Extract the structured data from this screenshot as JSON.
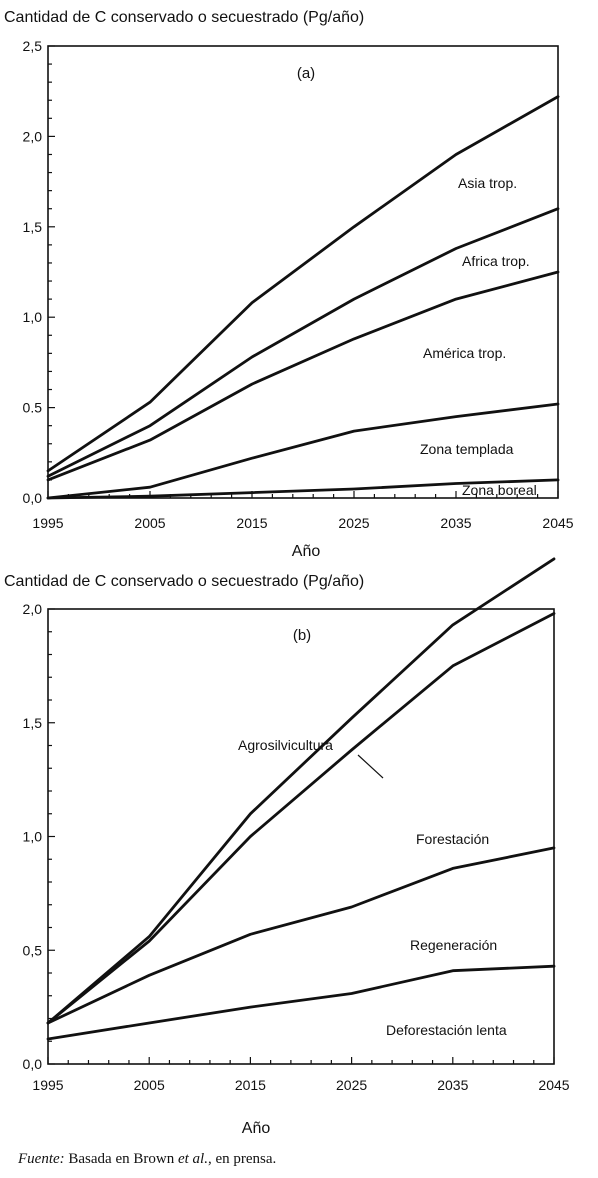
{
  "chart_data": [
    {
      "type": "line",
      "title": "Cantidad de C conservado o secuestrado (Pg/año)",
      "panel_label": "(a)",
      "xlabel": "Año",
      "ylabel": "",
      "xlim": [
        1995,
        2045
      ],
      "ylim": [
        0,
        2.5
      ],
      "x_ticks": [
        "1995",
        "2005",
        "2015",
        "2025",
        "2035",
        "2045"
      ],
      "y_ticks": [
        "0,0",
        "0.5",
        "1,0",
        "1,5",
        "2,0",
        "2,5"
      ],
      "x": [
        1995,
        2005,
        2015,
        2025,
        2035,
        2045
      ],
      "series": [
        {
          "name": "Asia trop.",
          "values": [
            0.15,
            0.53,
            1.08,
            1.5,
            1.9,
            2.22
          ]
        },
        {
          "name": "Africa trop.",
          "values": [
            0.12,
            0.4,
            0.78,
            1.1,
            1.38,
            1.6
          ]
        },
        {
          "name": "América trop.",
          "values": [
            0.1,
            0.32,
            0.63,
            0.88,
            1.1,
            1.25
          ]
        },
        {
          "name": "Zona templada",
          "values": [
            0.0,
            0.06,
            0.22,
            0.37,
            0.45,
            0.52
          ]
        },
        {
          "name": "Zona boreal",
          "values": [
            0.0,
            0.01,
            0.03,
            0.05,
            0.08,
            0.1
          ]
        }
      ]
    },
    {
      "type": "line",
      "title": "Cantidad de C conservado o secuestrado (Pg/año)",
      "panel_label": "(b)",
      "xlabel": "Año",
      "ylabel": "",
      "xlim": [
        1995,
        2045
      ],
      "ylim": [
        0,
        2.0
      ],
      "x_ticks": [
        "1995",
        "2005",
        "2015",
        "2025",
        "2035",
        "2045"
      ],
      "y_ticks": [
        "0,0",
        "0,5",
        "1,0",
        "1,5",
        "2,0"
      ],
      "x": [
        1995,
        2005,
        2015,
        2025,
        2035,
        2045
      ],
      "series": [
        {
          "name": "Agrosilvicultura",
          "values": [
            0.18,
            0.56,
            1.1,
            1.52,
            1.93,
            2.22
          ]
        },
        {
          "name": "Forestación",
          "values": [
            0.18,
            0.54,
            1.0,
            1.38,
            1.75,
            1.98
          ]
        },
        {
          "name": "Regeneración",
          "values": [
            0.18,
            0.39,
            0.57,
            0.69,
            0.86,
            0.95
          ]
        },
        {
          "name": "Deforestación lenta",
          "values": [
            0.11,
            0.18,
            0.25,
            0.31,
            0.41,
            0.43
          ]
        }
      ]
    }
  ],
  "source_prefix": "Fuente:",
  "source_text_1": " Basada en Brown ",
  "source_italic": "et al.",
  "source_text_2": ", en prensa."
}
